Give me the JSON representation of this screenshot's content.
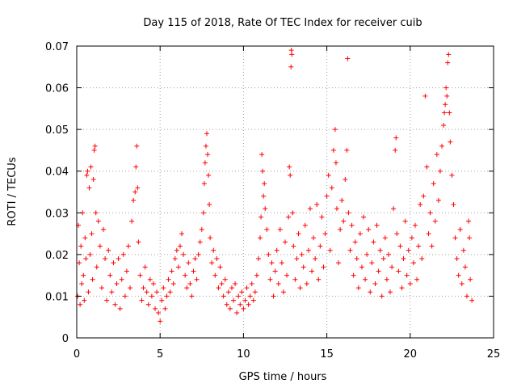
{
  "chart_data": {
    "type": "scatter",
    "title": "Day 115 of 2018, Rate Of TEC Index for receiver cuib",
    "xlabel": "GPS time / hours",
    "ylabel": "ROTI / TECUs",
    "xlim": [
      0,
      25
    ],
    "ylim": [
      0,
      0.07
    ],
    "xticks": [
      0,
      5,
      10,
      15,
      20,
      25
    ],
    "xtick_labels": [
      "0",
      "5",
      "10",
      "15",
      "20",
      "25"
    ],
    "yticks": [
      0,
      0.01,
      0.02,
      0.03,
      0.04,
      0.05,
      0.06,
      0.07
    ],
    "ytick_labels": [
      "0",
      "0.01",
      "0.02",
      "0.03",
      "0.04",
      "0.05",
      "0.06",
      "0.07"
    ],
    "grid": true,
    "marker": "plus",
    "color": "#ff0000",
    "series": [
      {
        "name": "ROTI",
        "points": [
          [
            0.05,
            0.01
          ],
          [
            0.1,
            0.027
          ],
          [
            0.15,
            0.018
          ],
          [
            0.2,
            0.008
          ],
          [
            0.25,
            0.022
          ],
          [
            0.3,
            0.013
          ],
          [
            0.35,
            0.03
          ],
          [
            0.4,
            0.015
          ],
          [
            0.45,
            0.009
          ],
          [
            0.5,
            0.024
          ],
          [
            0.55,
            0.019
          ],
          [
            0.6,
            0.039
          ],
          [
            0.65,
            0.04
          ],
          [
            0.7,
            0.011
          ],
          [
            0.75,
            0.036
          ],
          [
            0.8,
            0.02
          ],
          [
            0.85,
            0.041
          ],
          [
            0.9,
            0.025
          ],
          [
            0.95,
            0.014
          ],
          [
            1.0,
            0.038
          ],
          [
            1.05,
            0.045
          ],
          [
            1.1,
            0.046
          ],
          [
            1.15,
            0.03
          ],
          [
            1.2,
            0.017
          ],
          [
            1.3,
            0.028
          ],
          [
            1.4,
            0.022
          ],
          [
            1.5,
            0.012
          ],
          [
            1.6,
            0.026
          ],
          [
            1.7,
            0.019
          ],
          [
            1.8,
            0.009
          ],
          [
            1.9,
            0.021
          ],
          [
            2.0,
            0.015
          ],
          [
            2.1,
            0.011
          ],
          [
            2.2,
            0.018
          ],
          [
            2.3,
            0.008
          ],
          [
            2.4,
            0.013
          ],
          [
            2.5,
            0.019
          ],
          [
            2.6,
            0.007
          ],
          [
            2.7,
            0.014
          ],
          [
            2.8,
            0.02
          ],
          [
            2.9,
            0.01
          ],
          [
            3.0,
            0.016
          ],
          [
            3.1,
            0.022
          ],
          [
            3.2,
            0.012
          ],
          [
            3.3,
            0.028
          ],
          [
            3.4,
            0.033
          ],
          [
            3.5,
            0.035
          ],
          [
            3.55,
            0.041
          ],
          [
            3.6,
            0.046
          ],
          [
            3.65,
            0.036
          ],
          [
            3.7,
            0.023
          ],
          [
            3.8,
            0.015
          ],
          [
            3.9,
            0.009
          ],
          [
            4.0,
            0.012
          ],
          [
            4.1,
            0.017
          ],
          [
            4.2,
            0.011
          ],
          [
            4.3,
            0.008
          ],
          [
            4.4,
            0.014
          ],
          [
            4.5,
            0.01
          ],
          [
            4.6,
            0.013
          ],
          [
            4.7,
            0.007
          ],
          [
            4.8,
            0.011
          ],
          [
            4.9,
            0.006
          ],
          [
            5.0,
            0.004
          ],
          [
            5.1,
            0.009
          ],
          [
            5.2,
            0.012
          ],
          [
            5.3,
            0.007
          ],
          [
            5.4,
            0.01
          ],
          [
            5.5,
            0.014
          ],
          [
            5.6,
            0.011
          ],
          [
            5.7,
            0.016
          ],
          [
            5.8,
            0.013
          ],
          [
            5.9,
            0.019
          ],
          [
            6.0,
            0.021
          ],
          [
            6.1,
            0.017
          ],
          [
            6.2,
            0.022
          ],
          [
            6.3,
            0.025
          ],
          [
            6.4,
            0.02
          ],
          [
            6.5,
            0.015
          ],
          [
            6.6,
            0.012
          ],
          [
            6.7,
            0.018
          ],
          [
            6.8,
            0.013
          ],
          [
            6.9,
            0.01
          ],
          [
            7.0,
            0.016
          ],
          [
            7.1,
            0.019
          ],
          [
            7.2,
            0.014
          ],
          [
            7.3,
            0.02
          ],
          [
            7.4,
            0.023
          ],
          [
            7.5,
            0.026
          ],
          [
            7.6,
            0.03
          ],
          [
            7.65,
            0.037
          ],
          [
            7.7,
            0.042
          ],
          [
            7.75,
            0.046
          ],
          [
            7.8,
            0.049
          ],
          [
            7.85,
            0.044
          ],
          [
            7.9,
            0.039
          ],
          [
            7.95,
            0.032
          ],
          [
            8.0,
            0.024
          ],
          [
            8.1,
            0.018
          ],
          [
            8.2,
            0.021
          ],
          [
            8.3,
            0.015
          ],
          [
            8.4,
            0.019
          ],
          [
            8.5,
            0.012
          ],
          [
            8.6,
            0.017
          ],
          [
            8.7,
            0.013
          ],
          [
            8.8,
            0.01
          ],
          [
            8.9,
            0.014
          ],
          [
            9.0,
            0.008
          ],
          [
            9.1,
            0.011
          ],
          [
            9.2,
            0.007
          ],
          [
            9.3,
            0.012
          ],
          [
            9.4,
            0.009
          ],
          [
            9.5,
            0.013
          ],
          [
            9.6,
            0.006
          ],
          [
            9.7,
            0.01
          ],
          [
            9.8,
            0.008
          ],
          [
            9.9,
            0.011
          ],
          [
            10.0,
            0.007
          ],
          [
            10.1,
            0.009
          ],
          [
            10.2,
            0.012
          ],
          [
            10.3,
            0.008
          ],
          [
            10.4,
            0.01
          ],
          [
            10.5,
            0.013
          ],
          [
            10.6,
            0.009
          ],
          [
            10.7,
            0.011
          ],
          [
            10.8,
            0.015
          ],
          [
            10.9,
            0.019
          ],
          [
            11.0,
            0.024
          ],
          [
            11.05,
            0.029
          ],
          [
            11.1,
            0.044
          ],
          [
            11.15,
            0.04
          ],
          [
            11.2,
            0.034
          ],
          [
            11.25,
            0.037
          ],
          [
            11.3,
            0.031
          ],
          [
            11.4,
            0.026
          ],
          [
            11.5,
            0.02
          ],
          [
            11.6,
            0.014
          ],
          [
            11.7,
            0.018
          ],
          [
            11.8,
            0.01
          ],
          [
            11.9,
            0.016
          ],
          [
            12.0,
            0.021
          ],
          [
            12.1,
            0.013
          ],
          [
            12.2,
            0.026
          ],
          [
            12.3,
            0.018
          ],
          [
            12.4,
            0.011
          ],
          [
            12.5,
            0.023
          ],
          [
            12.6,
            0.015
          ],
          [
            12.7,
            0.029
          ],
          [
            12.75,
            0.041
          ],
          [
            12.8,
            0.039
          ],
          [
            12.85,
            0.065
          ],
          [
            12.87,
            0.069
          ],
          [
            12.9,
            0.068
          ],
          [
            12.95,
            0.03
          ],
          [
            13.0,
            0.022
          ],
          [
            13.1,
            0.014
          ],
          [
            13.2,
            0.019
          ],
          [
            13.3,
            0.025
          ],
          [
            13.4,
            0.012
          ],
          [
            13.5,
            0.02
          ],
          [
            13.6,
            0.017
          ],
          [
            13.7,
            0.027
          ],
          [
            13.8,
            0.013
          ],
          [
            13.9,
            0.021
          ],
          [
            14.0,
            0.031
          ],
          [
            14.1,
            0.016
          ],
          [
            14.2,
            0.024
          ],
          [
            14.3,
            0.019
          ],
          [
            14.4,
            0.032
          ],
          [
            14.5,
            0.014
          ],
          [
            14.6,
            0.022
          ],
          [
            14.7,
            0.029
          ],
          [
            14.8,
            0.017
          ],
          [
            14.9,
            0.025
          ],
          [
            15.0,
            0.034
          ],
          [
            15.1,
            0.039
          ],
          [
            15.2,
            0.021
          ],
          [
            15.3,
            0.036
          ],
          [
            15.4,
            0.045
          ],
          [
            15.5,
            0.05
          ],
          [
            15.55,
            0.042
          ],
          [
            15.6,
            0.031
          ],
          [
            15.7,
            0.018
          ],
          [
            15.8,
            0.026
          ],
          [
            15.9,
            0.033
          ],
          [
            16.0,
            0.028
          ],
          [
            16.1,
            0.038
          ],
          [
            16.2,
            0.045
          ],
          [
            16.25,
            0.067
          ],
          [
            16.3,
            0.03
          ],
          [
            16.4,
            0.021
          ],
          [
            16.5,
            0.027
          ],
          [
            16.6,
            0.015
          ],
          [
            16.7,
            0.023
          ],
          [
            16.8,
            0.019
          ],
          [
            16.9,
            0.012
          ],
          [
            17.0,
            0.025
          ],
          [
            17.1,
            0.017
          ],
          [
            17.2,
            0.029
          ],
          [
            17.3,
            0.014
          ],
          [
            17.4,
            0.02
          ],
          [
            17.5,
            0.026
          ],
          [
            17.6,
            0.011
          ],
          [
            17.7,
            0.018
          ],
          [
            17.8,
            0.023
          ],
          [
            17.9,
            0.013
          ],
          [
            18.0,
            0.027
          ],
          [
            18.1,
            0.016
          ],
          [
            18.2,
            0.021
          ],
          [
            18.3,
            0.01
          ],
          [
            18.4,
            0.019
          ],
          [
            18.5,
            0.024
          ],
          [
            18.6,
            0.014
          ],
          [
            18.7,
            0.02
          ],
          [
            18.8,
            0.011
          ],
          [
            18.9,
            0.017
          ],
          [
            19.0,
            0.031
          ],
          [
            19.1,
            0.045
          ],
          [
            19.15,
            0.048
          ],
          [
            19.2,
            0.025
          ],
          [
            19.3,
            0.016
          ],
          [
            19.4,
            0.022
          ],
          [
            19.5,
            0.012
          ],
          [
            19.6,
            0.019
          ],
          [
            19.7,
            0.028
          ],
          [
            19.8,
            0.015
          ],
          [
            19.9,
            0.021
          ],
          [
            20.0,
            0.013
          ],
          [
            20.1,
            0.024
          ],
          [
            20.2,
            0.018
          ],
          [
            20.3,
            0.027
          ],
          [
            20.4,
            0.014
          ],
          [
            20.5,
            0.022
          ],
          [
            20.6,
            0.032
          ],
          [
            20.7,
            0.019
          ],
          [
            20.8,
            0.034
          ],
          [
            20.9,
            0.058
          ],
          [
            21.0,
            0.041
          ],
          [
            21.1,
            0.025
          ],
          [
            21.2,
            0.03
          ],
          [
            21.3,
            0.022
          ],
          [
            21.4,
            0.037
          ],
          [
            21.5,
            0.028
          ],
          [
            21.6,
            0.044
          ],
          [
            21.7,
            0.033
          ],
          [
            21.8,
            0.04
          ],
          [
            21.9,
            0.046
          ],
          [
            22.0,
            0.051
          ],
          [
            22.05,
            0.054
          ],
          [
            22.1,
            0.056
          ],
          [
            22.15,
            0.06
          ],
          [
            22.2,
            0.058
          ],
          [
            22.25,
            0.066
          ],
          [
            22.3,
            0.068
          ],
          [
            22.35,
            0.054
          ],
          [
            22.4,
            0.047
          ],
          [
            22.5,
            0.039
          ],
          [
            22.6,
            0.032
          ],
          [
            22.7,
            0.024
          ],
          [
            22.8,
            0.019
          ],
          [
            22.9,
            0.015
          ],
          [
            23.0,
            0.026
          ],
          [
            23.1,
            0.013
          ],
          [
            23.2,
            0.021
          ],
          [
            23.3,
            0.017
          ],
          [
            23.4,
            0.01
          ],
          [
            23.5,
            0.028
          ],
          [
            23.55,
            0.024
          ],
          [
            23.6,
            0.014
          ],
          [
            23.7,
            0.009
          ]
        ]
      }
    ]
  }
}
